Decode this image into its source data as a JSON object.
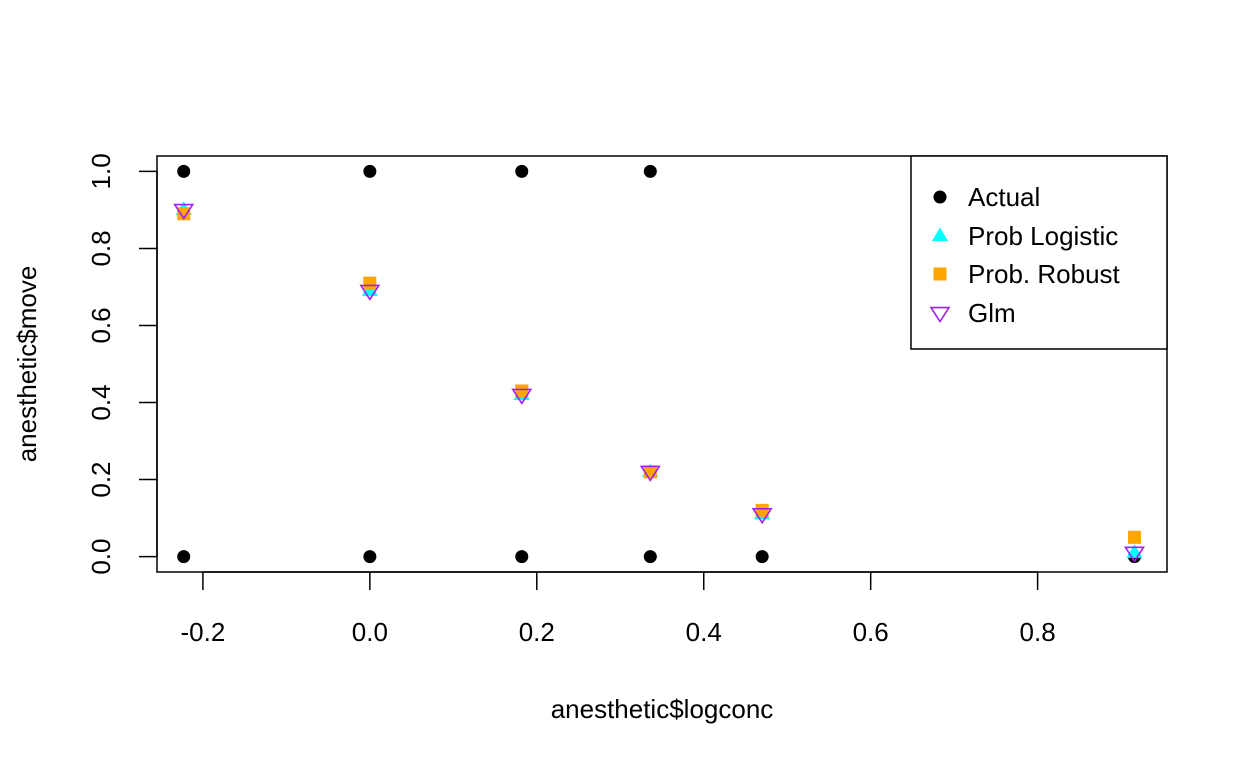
{
  "chart_data": {
    "type": "scatter",
    "title": "",
    "xlabel": "anesthetic$logconc",
    "ylabel": "anesthetic$move",
    "xlim": [
      -0.255,
      0.955
    ],
    "ylim": [
      -0.04,
      1.04
    ],
    "x_ticks": [
      -0.2,
      0.0,
      0.2,
      0.4,
      0.6,
      0.8
    ],
    "x_tick_labels": [
      "-0.2",
      "0.0",
      "0.2",
      "0.4",
      "0.6",
      "0.8"
    ],
    "y_ticks": [
      0.0,
      0.2,
      0.4,
      0.6,
      0.8,
      1.0
    ],
    "y_tick_labels": [
      "0.0",
      "0.2",
      "0.4",
      "0.6",
      "0.8",
      "1.0"
    ],
    "grid": false,
    "legend_position": "top-right",
    "series": [
      {
        "name": "Actual",
        "marker": "filled-circle",
        "color": "#000000",
        "points": [
          [
            -0.223,
            1
          ],
          [
            -0.223,
            0
          ],
          [
            0.0,
            1
          ],
          [
            0.0,
            0
          ],
          [
            0.182,
            1
          ],
          [
            0.182,
            0
          ],
          [
            0.336,
            1
          ],
          [
            0.336,
            0
          ],
          [
            0.47,
            0
          ],
          [
            0.916,
            0
          ]
        ]
      },
      {
        "name": "Prob Logistic",
        "marker": "filled-triangle-up",
        "color": "#00FFFF",
        "points": [
          [
            -0.223,
            0.9
          ],
          [
            0.0,
            0.69
          ],
          [
            0.182,
            0.42
          ],
          [
            0.336,
            0.22
          ],
          [
            0.47,
            0.11
          ],
          [
            0.916,
            0.01
          ]
        ]
      },
      {
        "name": "Prob. Robust",
        "marker": "filled-square",
        "color": "#FFA500",
        "points": [
          [
            -0.223,
            0.89
          ],
          [
            0.0,
            0.71
          ],
          [
            0.182,
            0.43
          ],
          [
            0.336,
            0.22
          ],
          [
            0.47,
            0.12
          ],
          [
            0.916,
            0.05
          ]
        ]
      },
      {
        "name": "Glm",
        "marker": "open-triangle-down",
        "color": "#A020F0",
        "points": [
          [
            -0.223,
            0.9
          ],
          [
            0.0,
            0.69
          ],
          [
            0.182,
            0.42
          ],
          [
            0.336,
            0.22
          ],
          [
            0.47,
            0.11
          ],
          [
            0.916,
            0.01
          ]
        ]
      }
    ]
  }
}
